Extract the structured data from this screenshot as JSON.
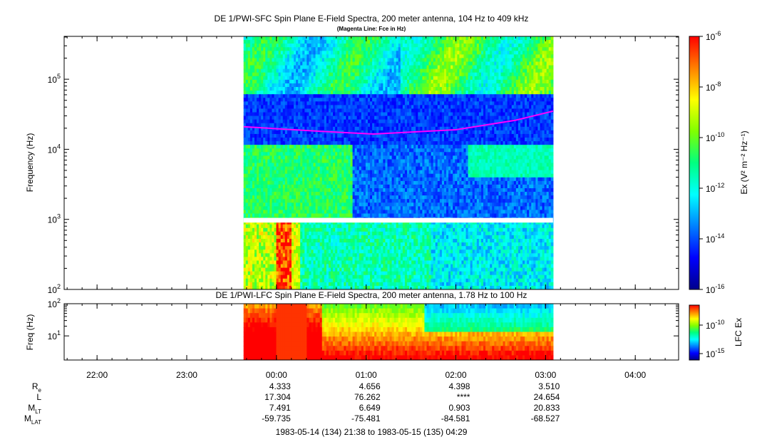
{
  "chart_data": [
    {
      "type": "heatmap",
      "title": "DE 1/PWI-SFC  Spin Plane E-Field Spectra, 200 meter antenna, 104 Hz to 409 kHz",
      "subtitle": "(Magenta Line: Fce in Hz)",
      "ylabel": "Frequency (Hz)",
      "y_scale": "log",
      "ylim": [
        100,
        409000
      ],
      "y_ticks": [
        {
          "value": 100,
          "base": "10",
          "exp": "2"
        },
        {
          "value": 1000,
          "base": "10",
          "exp": "3"
        },
        {
          "value": 10000,
          "base": "10",
          "exp": "4"
        },
        {
          "value": 100000,
          "base": "10",
          "exp": "5"
        }
      ],
      "data_start": "1983-05-14 23:38",
      "data_end": "1983-05-15 03:05",
      "gap_hz": [
        900,
        1050
      ],
      "fce_line": {
        "name": "Fce",
        "color": "#ff00ff",
        "time": [
          "1983-05-14 23:38",
          "1983-05-15 00:30",
          "1983-05-15 01:05",
          "1983-05-15 02:00",
          "1983-05-15 02:40",
          "1983-05-15 03:05"
        ],
        "hz": [
          21000,
          18000,
          16500,
          19000,
          26000,
          35000
        ]
      },
      "colorbar": {
        "label": "Ex (V² m⁻² Hz⁻¹)",
        "scale": "log",
        "range": [
          1e-16,
          1e-06
        ],
        "ticks": [
          {
            "value": 1e-06,
            "base": "10",
            "exp": "-6"
          },
          {
            "value": 1e-08,
            "base": "10",
            "exp": "-8"
          },
          {
            "value": 1e-10,
            "base": "10",
            "exp": "-10"
          },
          {
            "value": 1e-12,
            "base": "10",
            "exp": "-12"
          },
          {
            "value": 1e-14,
            "base": "10",
            "exp": "-14"
          },
          {
            "value": 1e-16,
            "base": "10",
            "exp": "-16"
          }
        ]
      }
    },
    {
      "type": "heatmap",
      "title": "DE 1/PWI-LFC  Spin Plane E-Field Spectra, 200 meter antenna, 1.78 Hz to 100 Hz",
      "ylabel": "Freq (Hz)",
      "y_scale": "log",
      "ylim": [
        1.78,
        100
      ],
      "y_ticks": [
        {
          "value": 100,
          "base": "10",
          "exp": "2"
        },
        {
          "value": 10,
          "base": "10",
          "exp": "1"
        }
      ],
      "data_start": "1983-05-14 23:38",
      "data_end": "1983-05-15 03:05",
      "colorbar": {
        "label": "LFC Ex",
        "scale": "log",
        "ticks": [
          {
            "value": 1e-10,
            "base": "10",
            "exp": "-10"
          },
          {
            "value": 1e-15,
            "base": "10",
            "exp": "-15"
          }
        ]
      }
    }
  ],
  "time_axis": {
    "start": "1983-05-14 21:38",
    "end": "1983-05-15 04:29",
    "tick_labels": [
      "22:00",
      "23:00",
      "00:00",
      "01:00",
      "02:00",
      "03:00",
      "04:00"
    ]
  },
  "ephemeris": {
    "rows": [
      {
        "label": "R",
        "sub": "e",
        "values": [
          "4.333",
          "4.656",
          "4.398",
          "3.510"
        ]
      },
      {
        "label": "L",
        "sub": "",
        "values": [
          "17.304",
          "76.262",
          "****",
          "24.654"
        ]
      },
      {
        "label": "M",
        "sub": "LT",
        "values": [
          "7.491",
          "6.649",
          "0.903",
          "20.833"
        ]
      },
      {
        "label": "M",
        "sub": "LAT",
        "values": [
          "-59.735",
          "-75.481",
          "-84.581",
          "-68.527"
        ]
      }
    ],
    "column_ticks": [
      "00:00",
      "01:00",
      "02:00",
      "03:00"
    ]
  },
  "time_range_text": "1983-05-14 (134) 21:38 to 1983-05-15 (135) 04:29",
  "colors": {
    "spectrogram_scale": [
      "#00008b",
      "#0000ff",
      "#0080ff",
      "#00ffff",
      "#00ff80",
      "#80ff00",
      "#ffff00",
      "#ff8000",
      "#ff0000"
    ],
    "gap": "#ffffff",
    "fce": "#ff00ff"
  }
}
